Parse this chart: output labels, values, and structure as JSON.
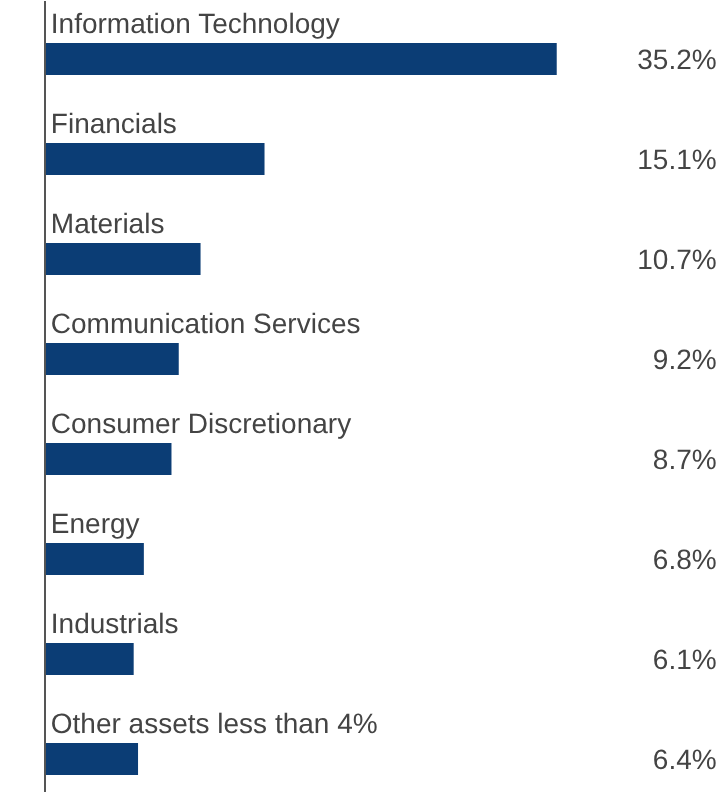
{
  "chart_data": {
    "type": "bar",
    "orientation": "horizontal",
    "categories": [
      "Information Technology",
      "Financials",
      "Materials",
      "Communication Services",
      "Consumer Discretionary",
      "Energy",
      "Industrials",
      "Other assets less than 4%"
    ],
    "values": [
      35.2,
      15.1,
      10.7,
      9.2,
      8.7,
      6.8,
      6.1,
      6.4
    ],
    "value_labels": [
      "35.2%",
      "15.1%",
      "10.7%",
      "9.2%",
      "8.7%",
      "6.8%",
      "6.1%",
      "6.4%"
    ],
    "color": "#0b3d75",
    "grid": false
  }
}
